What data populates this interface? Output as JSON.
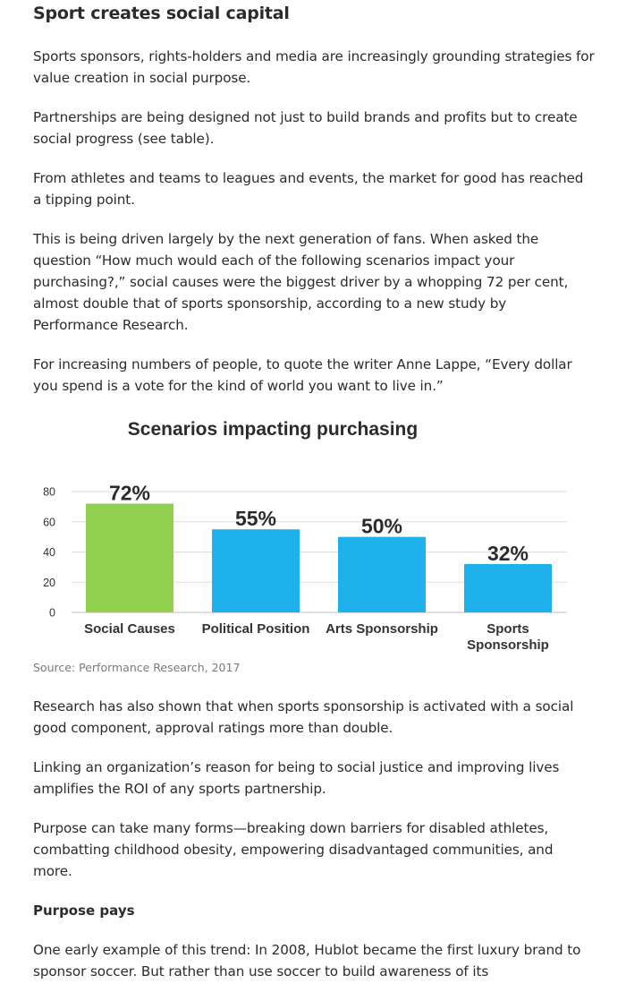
{
  "article": {
    "heading": "Sport creates social capital",
    "p1": "Sports sponsors, rights-holders and media are increasingly grounding strategies for value creation in social purpose.",
    "p2": "Partnerships are being designed not just to build brands and profits but to create social progress (see table).",
    "p3": "From athletes and teams to leagues and events, the market for good has reached a tipping point.",
    "p4": "This is being driven largely by the next generation of fans. When asked the question “How much would each of the following scenarios impact your purchasing?,” social causes were the biggest driver by a whopping 72 per cent, almost double that of sports sponsorship, according to a new study by Performance Research.",
    "p5": "For increasing numbers of people, to quote the writer Anne Lappe, “Every dollar you spend is a vote for the kind of world you want to live in.”",
    "source": "Source: Performance Research, 2017",
    "p6": "Research has also shown that when sports sponsorship is activated with a social good component, approval ratings more than double.",
    "p7": "Linking an organization’s reason for being to social justice and improving lives amplifies the ROI of any sports partnership.",
    "p8": "Purpose can take many forms—breaking down barriers for disabled athletes, combatting childhood obesity, empowering disadvantaged communities, and more.",
    "subheading": "Purpose pays",
    "p9": "One early example of this trend: In 2008, Hublot became the first luxury brand to sponsor soccer. But rather than use soccer to build awareness of its"
  },
  "chart_data": {
    "type": "bar",
    "title": "Scenarios impacting purchasing",
    "categories": [
      [
        "Social Causes"
      ],
      [
        "Political Position"
      ],
      [
        "Arts Sponsorship"
      ],
      [
        "Sports",
        "Sponsorship"
      ]
    ],
    "values": [
      72,
      55,
      50,
      32
    ],
    "data_labels": [
      "72%",
      "55%",
      "50%",
      "32%"
    ],
    "colors": [
      "#92d050",
      "#1fb1ec",
      "#1fb1ec",
      "#1fb1ec"
    ],
    "yticks": [
      0,
      20,
      40,
      60,
      80
    ],
    "ylim": [
      0,
      80
    ],
    "grid": true,
    "xlabel": "",
    "ylabel": ""
  }
}
